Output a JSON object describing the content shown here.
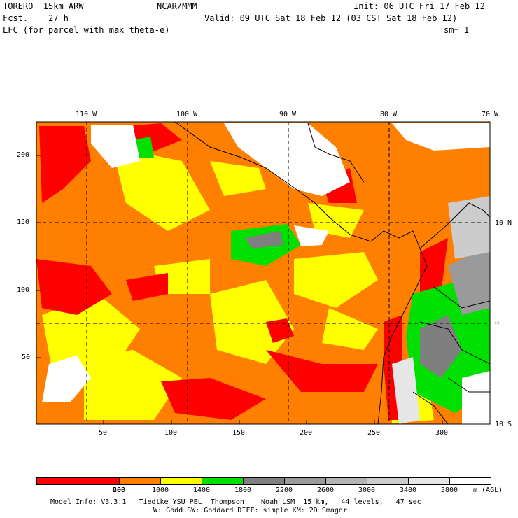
{
  "header": {
    "model_name": "TORERO  15km ARW",
    "center": "NCAR/MMM",
    "init": "Init: 06 UTC Fri 17 Feb 12",
    "fcst": "Fcst.    27 h",
    "valid": "Valid: 09 UTC Sat 18 Feb 12 (03 CST Sat 18 Feb 12)",
    "field": "LFC (for parcel with max theta-e)",
    "smoothing": "sm= 1"
  },
  "map": {
    "lon_labels": [
      "110 W",
      "100 W",
      "90 W",
      "80 W",
      "70 W"
    ],
    "lat_labels": [
      "10 N",
      "0",
      "10 S"
    ],
    "y_ticks": [
      "200",
      "150",
      "100",
      "50"
    ],
    "x_ticks": [
      "50",
      "100",
      "150",
      "200",
      "250",
      "300"
    ]
  },
  "colorbar": {
    "colors": [
      "#ff0000",
      "#ff0000",
      "#ff7f00",
      "#ffff00",
      "#00e000",
      "#7f7f7f",
      "#9a9a9a",
      "#b3b3b3",
      "#cccccc",
      "#e6e6e6",
      "#ffffff"
    ],
    "labels": [
      "200",
      "600",
      "1000",
      "1400",
      "1800",
      "2200",
      "2600",
      "3000",
      "3400",
      "3800"
    ],
    "unit": "m (AGL)"
  },
  "footer": {
    "line1": "Model Info: V3.3.1   Tiedtke YSU PBL  Thompson    Noah LSM  15 km,   44 levels,   47 sec",
    "line2": "LW: Godd SW: Goddard DIFF: simple KM: 2D Smagor"
  }
}
